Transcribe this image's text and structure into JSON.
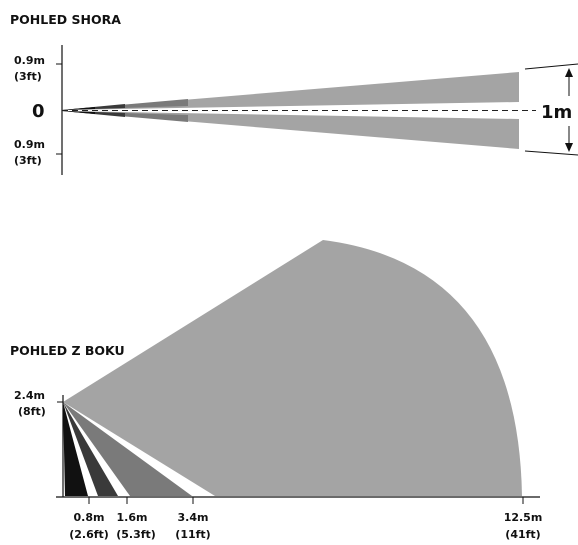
{
  "top_view": {
    "title": "POHLED SHORA",
    "upper_label": {
      "m": "0.9m",
      "ft": "(3ft)"
    },
    "origin_label": "0",
    "lower_label": {
      "m": "0.9m",
      "ft": "(3ft)"
    },
    "width_label": "1m"
  },
  "side_view": {
    "title": "POHLED Z BOKU",
    "height_label": {
      "m": "2.4m",
      "ft": "(8ft)"
    },
    "distances": [
      {
        "m": "0.8m",
        "ft": "(2.6ft)"
      },
      {
        "m": "1.6m",
        "ft": "(5.3ft)"
      },
      {
        "m": "3.4m",
        "ft": "(11ft)"
      },
      {
        "m": "12.5m",
        "ft": "(41ft)"
      }
    ]
  },
  "colors": {
    "far_zone": "#a4a4a4",
    "mid_zone": "#7a7a7a",
    "near_zone": "#3a3a3a",
    "nearest_zone": "#111111",
    "axis": "#111111"
  }
}
